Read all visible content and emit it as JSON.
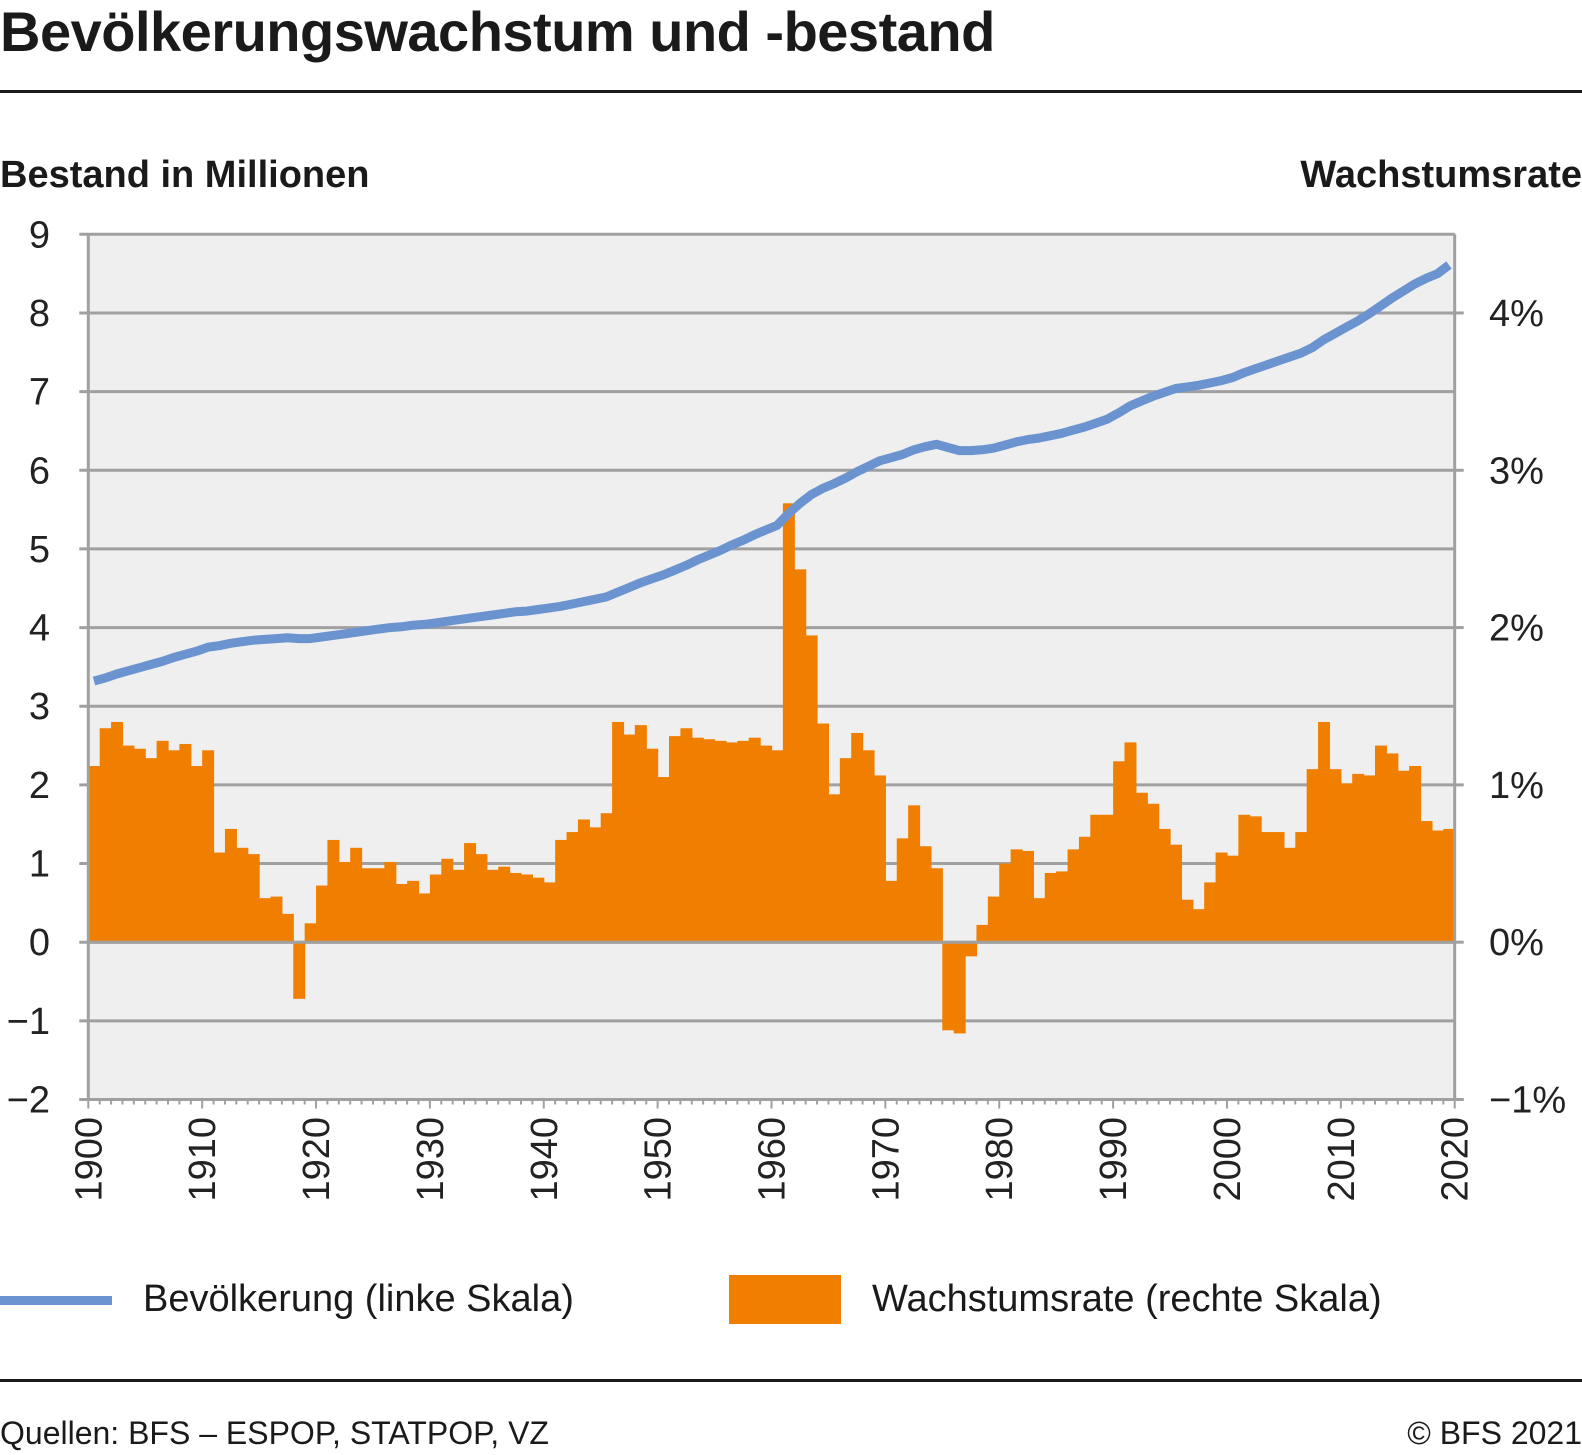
{
  "title": "Bevölkerungswachstum und -bestand",
  "footer": {
    "source": "Quellen: BFS – ESPOP, STATPOP, VZ",
    "copyright": "© BFS 2021"
  },
  "colors": {
    "population_line": "#6a93cf",
    "growth_bars": "#f07f00",
    "plot_background": "#efefef",
    "grid": "#a0a0a0",
    "text": "#1a1a1a"
  },
  "chart_data": {
    "type": "bar",
    "title": "Bevölkerungswachstum und -bestand",
    "ylabel_left": "Bestand in Millionen",
    "ylabel_right": "Wachstumsrate",
    "xlabel": "",
    "ylim_left": [
      -2,
      9
    ],
    "ylim_right": [
      -1,
      4.5
    ],
    "xlim": [
      1900,
      2020
    ],
    "grid": true,
    "legend_position": "bottom",
    "yticks_left": [
      "9",
      "8",
      "7",
      "6",
      "5",
      "4",
      "3",
      "2",
      "1",
      "0",
      "−1",
      "−2"
    ],
    "yticks_left_values": [
      9,
      8,
      7,
      6,
      5,
      4,
      3,
      2,
      1,
      0,
      -1,
      -2
    ],
    "yticks_right": [
      "4%",
      "3%",
      "2%",
      "1%",
      "0%",
      "−1%"
    ],
    "yticks_right_values": [
      4,
      3,
      2,
      1,
      0,
      -1
    ],
    "xticks": [
      "1900",
      "1910",
      "1920",
      "1930",
      "1940",
      "1950",
      "1960",
      "1970",
      "1980",
      "1990",
      "2000",
      "2010",
      "2020"
    ],
    "xticks_values": [
      1900,
      1910,
      1920,
      1930,
      1940,
      1950,
      1960,
      1970,
      1980,
      1990,
      2000,
      2010,
      2020
    ],
    "x": [
      1900,
      1901,
      1902,
      1903,
      1904,
      1905,
      1906,
      1907,
      1908,
      1909,
      1910,
      1911,
      1912,
      1913,
      1914,
      1915,
      1916,
      1917,
      1918,
      1919,
      1920,
      1921,
      1922,
      1923,
      1924,
      1925,
      1926,
      1927,
      1928,
      1929,
      1930,
      1931,
      1932,
      1933,
      1934,
      1935,
      1936,
      1937,
      1938,
      1939,
      1940,
      1941,
      1942,
      1943,
      1944,
      1945,
      1946,
      1947,
      1948,
      1949,
      1950,
      1951,
      1952,
      1953,
      1954,
      1955,
      1956,
      1957,
      1958,
      1959,
      1960,
      1961,
      1962,
      1963,
      1964,
      1965,
      1966,
      1967,
      1968,
      1969,
      1970,
      1971,
      1972,
      1973,
      1974,
      1975,
      1976,
      1977,
      1978,
      1979,
      1980,
      1981,
      1982,
      1983,
      1984,
      1985,
      1986,
      1987,
      1988,
      1989,
      1990,
      1991,
      1992,
      1993,
      1994,
      1995,
      1996,
      1997,
      1998,
      1999,
      2000,
      2001,
      2002,
      2003,
      2004,
      2005,
      2006,
      2007,
      2008,
      2009,
      2010,
      2011,
      2012,
      2013,
      2014,
      2015,
      2016,
      2017,
      2018,
      2019
    ],
    "series": [
      {
        "name": "Bevölkerung (linke Skala)",
        "type": "line",
        "axis": "left",
        "unit": "Millionen",
        "values": [
          3.32,
          3.36,
          3.41,
          3.45,
          3.49,
          3.53,
          3.57,
          3.62,
          3.66,
          3.7,
          3.75,
          3.77,
          3.8,
          3.82,
          3.84,
          3.85,
          3.86,
          3.87,
          3.86,
          3.86,
          3.88,
          3.9,
          3.92,
          3.94,
          3.96,
          3.98,
          4.0,
          4.01,
          4.03,
          4.04,
          4.06,
          4.08,
          4.1,
          4.12,
          4.14,
          4.16,
          4.18,
          4.2,
          4.21,
          4.23,
          4.25,
          4.27,
          4.3,
          4.33,
          4.36,
          4.39,
          4.45,
          4.51,
          4.57,
          4.62,
          4.67,
          4.73,
          4.79,
          4.86,
          4.92,
          4.98,
          5.05,
          5.11,
          5.18,
          5.24,
          5.3,
          5.45,
          5.58,
          5.69,
          5.77,
          5.83,
          5.9,
          5.98,
          6.05,
          6.12,
          6.16,
          6.2,
          6.26,
          6.3,
          6.33,
          6.29,
          6.25,
          6.25,
          6.26,
          6.28,
          6.32,
          6.36,
          6.39,
          6.41,
          6.44,
          6.47,
          6.51,
          6.55,
          6.6,
          6.65,
          6.73,
          6.82,
          6.88,
          6.94,
          6.99,
          7.04,
          7.06,
          7.08,
          7.11,
          7.14,
          7.18,
          7.24,
          7.29,
          7.34,
          7.39,
          7.44,
          7.49,
          7.56,
          7.66,
          7.74,
          7.82,
          7.9,
          7.99,
          8.09,
          8.19,
          8.28,
          8.37,
          8.44,
          8.5,
          8.61
        ]
      },
      {
        "name": "Wachstumsrate (rechte Skala)",
        "type": "bar",
        "axis": "right",
        "unit": "%",
        "values": [
          1.12,
          1.36,
          1.4,
          1.25,
          1.23,
          1.17,
          1.28,
          1.22,
          1.26,
          1.12,
          1.22,
          0.57,
          0.72,
          0.6,
          0.56,
          0.28,
          0.29,
          0.18,
          -0.36,
          0.12,
          0.36,
          0.65,
          0.51,
          0.6,
          0.47,
          0.47,
          0.51,
          0.37,
          0.39,
          0.31,
          0.43,
          0.53,
          0.46,
          0.63,
          0.56,
          0.46,
          0.48,
          0.44,
          0.43,
          0.41,
          0.38,
          0.65,
          0.7,
          0.78,
          0.73,
          0.82,
          1.4,
          1.32,
          1.38,
          1.23,
          1.05,
          1.31,
          1.36,
          1.3,
          1.29,
          1.28,
          1.27,
          1.28,
          1.3,
          1.25,
          1.22,
          2.79,
          2.37,
          1.95,
          1.39,
          0.94,
          1.17,
          1.33,
          1.22,
          1.06,
          0.39,
          0.66,
          0.87,
          0.61,
          0.47,
          -0.56,
          -0.58,
          -0.09,
          0.11,
          0.29,
          0.5,
          0.59,
          0.58,
          0.28,
          0.44,
          0.45,
          0.59,
          0.67,
          0.81,
          0.81,
          1.15,
          1.27,
          0.95,
          0.88,
          0.72,
          0.62,
          0.27,
          0.21,
          0.38,
          0.57,
          0.55,
          0.81,
          0.8,
          0.7,
          0.7,
          0.6,
          0.7,
          1.1,
          1.4,
          1.1,
          1.01,
          1.07,
          1.06,
          1.25,
          1.2,
          1.09,
          1.12,
          0.77,
          0.71,
          0.72
        ]
      }
    ]
  }
}
